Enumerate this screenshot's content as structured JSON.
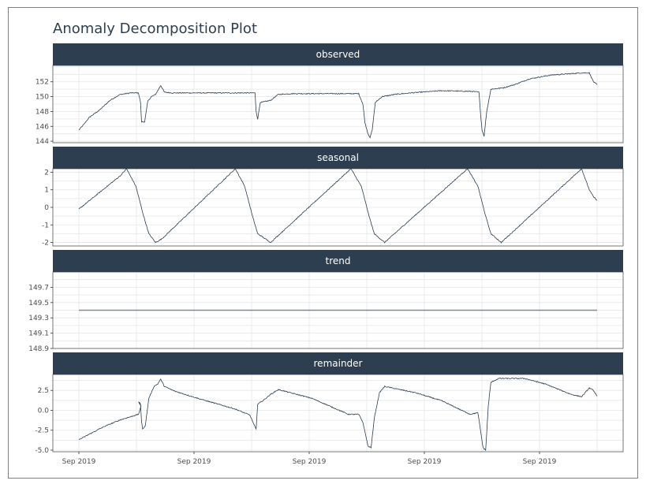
{
  "chart_data": {
    "type": "line",
    "title": "Anomaly Decomposition Plot",
    "x_tick_labels": [
      "Sep 2019",
      "Sep 2019",
      "Sep 2019",
      "Sep 2019",
      "Sep 2019"
    ],
    "x_range": [
      0,
      1
    ],
    "grid": true,
    "colors": {
      "strip": "#2c3e50",
      "line": "#2c3e50",
      "trend": "#7f8c94",
      "grid": "#e6e6e6",
      "panel_border": "#555555"
    },
    "panels": [
      {
        "name": "observed",
        "y_ticks": [
          144,
          146,
          148,
          150,
          152
        ],
        "y_tick_labels": [
          "144",
          "146",
          "148",
          "150",
          "152"
        ],
        "ylim": [
          143.8,
          154.2
        ],
        "keypoints": [
          [
            0,
            145.5
          ],
          [
            0.01,
            146.3
          ],
          [
            0.02,
            147.2
          ],
          [
            0.04,
            148.2
          ],
          [
            0.06,
            149.5
          ],
          [
            0.08,
            150.3
          ],
          [
            0.1,
            150.5
          ],
          [
            0.115,
            150.5
          ],
          [
            0.119,
            149.2
          ],
          [
            0.121,
            146.6
          ],
          [
            0.127,
            146.6
          ],
          [
            0.133,
            149.4
          ],
          [
            0.14,
            150.0
          ],
          [
            0.148,
            150.3
          ],
          [
            0.158,
            151.5
          ],
          [
            0.165,
            150.6
          ],
          [
            0.18,
            150.5
          ],
          [
            0.33,
            150.5
          ],
          [
            0.34,
            150.5
          ],
          [
            0.342,
            148.0
          ],
          [
            0.345,
            147.0
          ],
          [
            0.35,
            149.2
          ],
          [
            0.37,
            149.5
          ],
          [
            0.385,
            150.3
          ],
          [
            0.41,
            150.4
          ],
          [
            0.54,
            150.4
          ],
          [
            0.548,
            149.0
          ],
          [
            0.552,
            146.5
          ],
          [
            0.558,
            145.0
          ],
          [
            0.562,
            144.5
          ],
          [
            0.566,
            145.5
          ],
          [
            0.572,
            149.2
          ],
          [
            0.585,
            150.0
          ],
          [
            0.61,
            150.3
          ],
          [
            0.64,
            150.5
          ],
          [
            0.7,
            150.8
          ],
          [
            0.76,
            150.7
          ],
          [
            0.772,
            150.6
          ],
          [
            0.775,
            147.8
          ],
          [
            0.778,
            145.5
          ],
          [
            0.782,
            144.7
          ],
          [
            0.787,
            148.0
          ],
          [
            0.795,
            151.0
          ],
          [
            0.82,
            151.2
          ],
          [
            0.84,
            151.6
          ],
          [
            0.87,
            152.4
          ],
          [
            0.91,
            152.9
          ],
          [
            0.97,
            153.2
          ],
          [
            0.985,
            153.2
          ],
          [
            0.993,
            152.0
          ],
          [
            1.0,
            151.6
          ]
        ]
      },
      {
        "name": "seasonal",
        "y_ticks": [
          -2,
          -1,
          0,
          1,
          2
        ],
        "y_tick_labels": [
          "-2",
          "-1",
          "0",
          "1",
          "2"
        ],
        "ylim": [
          -2.2,
          2.2
        ],
        "keypoints": [
          [
            0,
            -0.1
          ],
          [
            0.08,
            1.8
          ],
          [
            0.092,
            2.2
          ],
          [
            0.11,
            1.2
          ],
          [
            0.125,
            -0.5
          ],
          [
            0.135,
            -1.5
          ],
          [
            0.148,
            -2.0
          ],
          [
            0.16,
            -1.8
          ],
          [
            0.302,
            2.2
          ],
          [
            0.32,
            1.2
          ],
          [
            0.335,
            -0.5
          ],
          [
            0.345,
            -1.5
          ],
          [
            0.37,
            -2.0
          ],
          [
            0.525,
            2.2
          ],
          [
            0.545,
            1.2
          ],
          [
            0.56,
            -0.5
          ],
          [
            0.57,
            -1.5
          ],
          [
            0.59,
            -2.0
          ],
          [
            0.75,
            2.2
          ],
          [
            0.77,
            1.2
          ],
          [
            0.785,
            -0.5
          ],
          [
            0.795,
            -1.5
          ],
          [
            0.815,
            -2.0
          ],
          [
            0.97,
            2.2
          ],
          [
            0.985,
            1.0
          ],
          [
            0.993,
            0.6
          ],
          [
            1.0,
            0.4
          ]
        ]
      },
      {
        "name": "trend",
        "y_ticks": [
          148.9,
          149.1,
          149.3,
          149.5,
          149.7
        ],
        "y_tick_labels": [
          "148.9",
          "149.1",
          "149.3",
          "149.5",
          "149.7"
        ],
        "ylim": [
          148.9,
          149.9
        ],
        "keypoints": [
          [
            0,
            149.4
          ],
          [
            1.0,
            149.4
          ]
        ]
      },
      {
        "name": "remainder",
        "y_ticks": [
          -5.0,
          -2.5,
          0.0,
          2.5
        ],
        "y_tick_labels": [
          "-5.0",
          "-2.5",
          "0.0",
          "2.5"
        ],
        "ylim": [
          -5.2,
          4.5
        ],
        "keypoints": [
          [
            0,
            -3.7
          ],
          [
            0.02,
            -3.0
          ],
          [
            0.05,
            -2.0
          ],
          [
            0.08,
            -1.2
          ],
          [
            0.1,
            -0.8
          ],
          [
            0.115,
            -0.5
          ],
          [
            0.12,
            0.5
          ],
          [
            0.115,
            1.1
          ],
          [
            0.119,
            0.8
          ],
          [
            0.121,
            -1.5
          ],
          [
            0.123,
            -2.3
          ],
          [
            0.128,
            -2.0
          ],
          [
            0.135,
            1.5
          ],
          [
            0.145,
            3.0
          ],
          [
            0.152,
            3.3
          ],
          [
            0.158,
            3.9
          ],
          [
            0.165,
            3.0
          ],
          [
            0.185,
            2.4
          ],
          [
            0.24,
            1.3
          ],
          [
            0.3,
            0.2
          ],
          [
            0.33,
            -0.6
          ],
          [
            0.342,
            -2.4
          ],
          [
            0.345,
            0.8
          ],
          [
            0.355,
            1.2
          ],
          [
            0.37,
            2.0
          ],
          [
            0.385,
            2.6
          ],
          [
            0.45,
            1.5
          ],
          [
            0.52,
            -0.5
          ],
          [
            0.54,
            -0.5
          ],
          [
            0.548,
            -1.5
          ],
          [
            0.553,
            -3.0
          ],
          [
            0.558,
            -4.5
          ],
          [
            0.564,
            -4.7
          ],
          [
            0.57,
            -1.0
          ],
          [
            0.58,
            2.2
          ],
          [
            0.59,
            3.0
          ],
          [
            0.65,
            2.2
          ],
          [
            0.7,
            1.2
          ],
          [
            0.755,
            -0.5
          ],
          [
            0.77,
            -0.3
          ],
          [
            0.775,
            -2.5
          ],
          [
            0.78,
            -4.7
          ],
          [
            0.785,
            -5.0
          ],
          [
            0.79,
            0.5
          ],
          [
            0.795,
            3.5
          ],
          [
            0.81,
            4.0
          ],
          [
            0.86,
            4.0
          ],
          [
            0.9,
            3.3
          ],
          [
            0.95,
            2.0
          ],
          [
            0.97,
            1.7
          ],
          [
            0.985,
            2.8
          ],
          [
            0.993,
            2.5
          ],
          [
            1.0,
            1.8
          ]
        ]
      }
    ]
  }
}
